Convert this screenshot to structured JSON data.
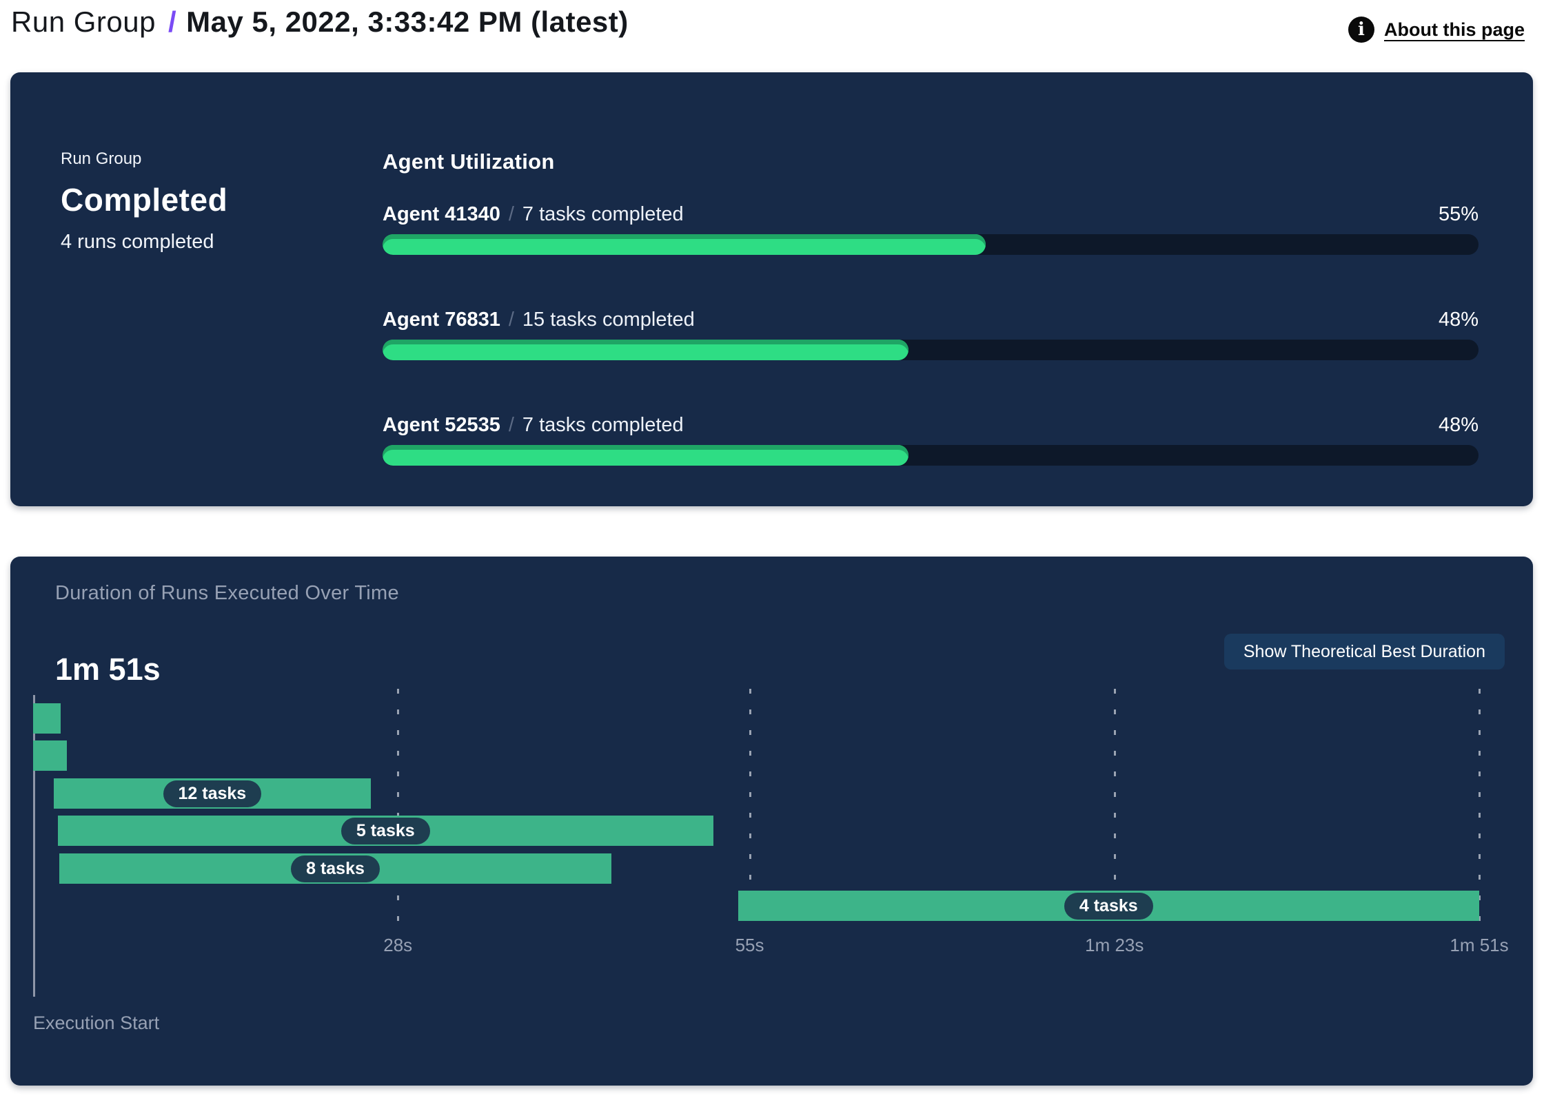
{
  "header": {
    "breadcrumb_root": "Run Group",
    "separator": "/",
    "title": "May 5, 2022, 3:33:42 PM (latest)",
    "info_icon_glyph": "i",
    "about_link": "About this page"
  },
  "colors": {
    "panel_navy": "#172A48",
    "track_dark": "#0D1829",
    "progress_green": "#2EDD84",
    "progress_green_shade": "#1FA565",
    "gantt_green": "#3DB489",
    "pill_navy": "#1E3D50",
    "button_navy": "#1A3A5E",
    "muted_gray": "#97A1B4",
    "accent_purple": "#7A4BF5"
  },
  "summary_panel": {
    "eyebrow": "Run Group",
    "status": "Completed",
    "subtitle": "4 runs completed",
    "section_title": "Agent Utilization",
    "agents": [
      {
        "name": "Agent 41340",
        "separator": "/",
        "tasks": "7 tasks completed",
        "percent_label": "55%",
        "percent": 55
      },
      {
        "name": "Agent 76831",
        "separator": "/",
        "tasks": "15 tasks completed",
        "percent_label": "48%",
        "percent": 48
      },
      {
        "name": "Agent 52535",
        "separator": "/",
        "tasks": "7 tasks completed",
        "percent_label": "48%",
        "percent": 48
      }
    ]
  },
  "duration_panel": {
    "title": "Duration of Runs Executed Over Time",
    "total_duration": "1m 51s",
    "button_label": "Show Theoretical Best Duration",
    "axis_label": "Execution Start"
  },
  "chart_data": {
    "type": "gantt",
    "title": "Duration of Runs Executed Over Time",
    "x_unit": "seconds",
    "xlim": [
      0,
      111
    ],
    "total_duration_label": "1m 51s",
    "ticks": [
      {
        "label": "28s",
        "s": 28
      },
      {
        "label": "55s",
        "s": 55
      },
      {
        "label": "1m 23s",
        "s": 83
      },
      {
        "label": "1m 51s",
        "s": 111
      }
    ],
    "bars": [
      {
        "label": "",
        "tasks": null,
        "start_s": 0.0,
        "end_s": 2.1
      },
      {
        "label": "",
        "tasks": null,
        "start_s": 0.0,
        "end_s": 2.6
      },
      {
        "label": "12 tasks",
        "tasks": 12,
        "start_s": 1.6,
        "end_s": 25.9
      },
      {
        "label": "5 tasks",
        "tasks": 5,
        "start_s": 1.9,
        "end_s": 52.2
      },
      {
        "label": "8 tasks",
        "tasks": 8,
        "start_s": 2.0,
        "end_s": 44.4
      },
      {
        "label": "4 tasks",
        "tasks": 4,
        "start_s": 54.1,
        "end_s": 111
      }
    ]
  }
}
